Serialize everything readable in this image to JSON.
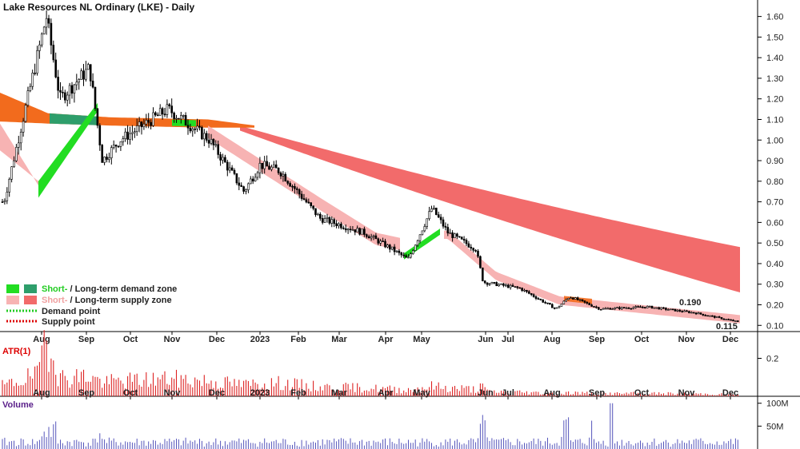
{
  "chart_data": {
    "type": "candlestick",
    "title": "Lake Resources NL Ordinary (LKE) - Daily",
    "main_panel": {
      "y_ticks": [
        "0.10",
        "0.20",
        "0.30",
        "0.40",
        "0.50",
        "0.60",
        "0.70",
        "0.80",
        "0.90",
        "1.00",
        "1.10",
        "1.20",
        "1.30",
        "1.40",
        "1.50",
        "1.60"
      ],
      "ylim": [
        0.07,
        1.68
      ],
      "x_ticks": [
        "Aug",
        "Sep",
        "Oct",
        "Nov",
        "Dec",
        "2023",
        "Feb",
        "Mar",
        "Apr",
        "May",
        "Jun",
        "Jul",
        "Aug",
        "Sep",
        "Oct",
        "Nov",
        "Dec"
      ],
      "annotations": [
        {
          "text": "0.190",
          "value": 0.19
        },
        {
          "text": "0.115",
          "value": 0.115
        }
      ],
      "price_path": [
        {
          "month": "Jul 2022",
          "price": 0.7
        },
        {
          "month": "Aug 2022",
          "price": 1.6
        },
        {
          "month": "Aug 2022",
          "price": 1.2
        },
        {
          "month": "Sep 2022",
          "price": 1.35
        },
        {
          "month": "Sep 2022",
          "price": 0.9
        },
        {
          "month": "Oct 2022",
          "price": 1.0
        },
        {
          "month": "Nov 2022",
          "price": 1.15
        },
        {
          "month": "Nov 2022",
          "price": 1.08
        },
        {
          "month": "Dec 2022",
          "price": 1.0
        },
        {
          "month": "Jan 2023",
          "price": 0.75
        },
        {
          "month": "Jan 2023",
          "price": 0.88
        },
        {
          "month": "Feb 2023",
          "price": 0.85
        },
        {
          "month": "Mar 2023",
          "price": 0.62
        },
        {
          "month": "Mar 2023",
          "price": 0.55
        },
        {
          "month": "Apr 2023",
          "price": 0.47
        },
        {
          "month": "Apr 2023",
          "price": 0.42
        },
        {
          "month": "May 2023",
          "price": 0.67
        },
        {
          "month": "May 2023",
          "price": 0.55
        },
        {
          "month": "Jun 2023",
          "price": 0.47
        },
        {
          "month": "Jun 2023",
          "price": 0.31
        },
        {
          "month": "Jul 2023",
          "price": 0.28
        },
        {
          "month": "Aug 2023",
          "price": 0.18
        },
        {
          "month": "Aug 2023",
          "price": 0.24
        },
        {
          "month": "Sep 2023",
          "price": 0.18
        },
        {
          "month": "Oct 2023",
          "price": 0.19
        },
        {
          "month": "Nov 2023",
          "price": 0.16
        },
        {
          "month": "Dec 2023",
          "price": 0.115
        }
      ],
      "legend": [
        {
          "text_a": "Short-",
          "sep": " / ",
          "text_b": "Long-term demand zone",
          "color_a": "#22dd22",
          "color_b": "#2e9e6b"
        },
        {
          "text_a": "Short-",
          "sep": " / ",
          "text_b": "Long-term supply zone",
          "color_a": "#f7b3b3",
          "color_b": "#f26b6b"
        },
        {
          "text": "Demand point",
          "color": "#22cc22"
        },
        {
          "text": "Supply point",
          "color": "#dd0000"
        }
      ],
      "legend_position": "bottom-left"
    },
    "atr_panel": {
      "label": "ATR(1)",
      "y_ticks": [
        "0.2"
      ],
      "ylim": [
        0,
        0.32
      ],
      "x_ticks": [
        "Aug",
        "Sep",
        "Oct",
        "Nov",
        "Dec",
        "2023",
        "Feb",
        "Mar",
        "Apr",
        "May",
        "Jun",
        "Jul",
        "Aug",
        "Sep",
        "Oct",
        "Nov",
        "Dec"
      ]
    },
    "volume_panel": {
      "label": "Volume",
      "y_ticks": [
        "50M",
        "100M"
      ],
      "ylim": [
        0,
        110000000
      ]
    },
    "colors": {
      "candle": "#000000",
      "short_demand": "#22dd22",
      "long_demand": "#2e9e6b",
      "short_supply": "#f7b3b3",
      "long_supply": "#f26b6b",
      "orange_zone": "#f26b1d",
      "atr": "#dd2222",
      "volume": "#5555bb",
      "volume_label": "#5a1f8a",
      "atr_label": "#dd0000"
    }
  }
}
